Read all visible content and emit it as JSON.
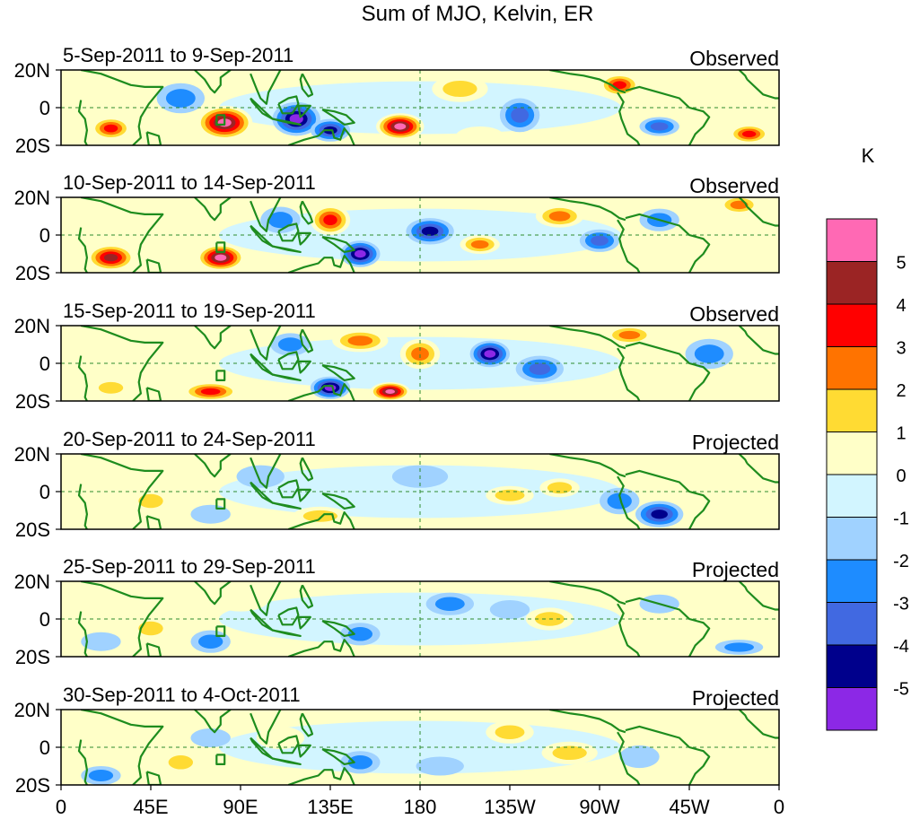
{
  "figure": {
    "title": "Sum of MJO, Kelvin, ER"
  },
  "colors": {
    "land_outline": "#1e8c1e",
    "equator_line": "#2e8b2e",
    "frame": "#000000"
  },
  "chart_data": {
    "type": "heatmap",
    "title": "Sum of MJO, Kelvin, ER",
    "x_tick_labels": [
      "0",
      "45E",
      "90E",
      "135E",
      "180",
      "135W",
      "90W",
      "45W",
      "0"
    ],
    "y_tick_labels": [
      "20N",
      "0",
      "20S"
    ],
    "xlim": [
      0,
      360
    ],
    "ylim": [
      -20,
      20
    ],
    "colorbar": {
      "unit": "K",
      "levels": [
        {
          "label": "5",
          "color": "#9b2424"
        },
        {
          "label": "4",
          "color": "#ff0000"
        },
        {
          "label": "3",
          "color": "#ff7300"
        },
        {
          "label": "2",
          "color": "#ffdb33"
        },
        {
          "label": "1",
          "color": "#ffffc8"
        },
        {
          "label": "0",
          "color": "#d2f5ff"
        },
        {
          "label": "-1",
          "color": "#a0d2ff"
        },
        {
          "label": "-2",
          "color": "#1e8cff"
        },
        {
          "label": "-3",
          "color": "#4169e1"
        },
        {
          "label": "-4",
          "color": "#00008c"
        },
        {
          "label": "-5",
          "color": "#8c28e6"
        }
      ],
      "top_color": "#ff69b4"
    },
    "panels": [
      {
        "period": "5-Sep-2011 to 9-Sep-2011",
        "status": "Observed",
        "anomalies": [
          {
            "lon": 25,
            "lat": -11,
            "rx": 10,
            "ry": 6,
            "value": 4
          },
          {
            "lon": 82,
            "lat": -8,
            "rx": 14,
            "ry": 9,
            "value": 6
          },
          {
            "lon": 118,
            "lat": -6,
            "rx": 12,
            "ry": 9,
            "value": -5
          },
          {
            "lon": 135,
            "lat": -12,
            "rx": 10,
            "ry": 6,
            "value": -4
          },
          {
            "lon": 170,
            "lat": -10,
            "rx": 12,
            "ry": 7,
            "value": 6
          },
          {
            "lon": 200,
            "lat": 10,
            "rx": 14,
            "ry": 7,
            "value": 2
          },
          {
            "lon": 230,
            "lat": -4,
            "rx": 10,
            "ry": 9,
            "value": -3
          },
          {
            "lon": 280,
            "lat": 12,
            "rx": 10,
            "ry": 6,
            "value": 4
          },
          {
            "lon": 300,
            "lat": -10,
            "rx": 10,
            "ry": 5,
            "value": -3
          },
          {
            "lon": 345,
            "lat": -14,
            "rx": 10,
            "ry": 5,
            "value": 4
          },
          {
            "lon": 60,
            "lat": 5,
            "rx": 12,
            "ry": 8,
            "value": -2
          },
          {
            "lon": 210,
            "lat": -15,
            "rx": 12,
            "ry": 5,
            "value": 1
          }
        ]
      },
      {
        "period": "10-Sep-2011 to 14-Sep-2011",
        "status": "Observed",
        "anomalies": [
          {
            "lon": 25,
            "lat": -12,
            "rx": 12,
            "ry": 7,
            "value": 5
          },
          {
            "lon": 80,
            "lat": -12,
            "rx": 12,
            "ry": 7,
            "value": 6
          },
          {
            "lon": 110,
            "lat": 8,
            "rx": 10,
            "ry": 7,
            "value": -2
          },
          {
            "lon": 135,
            "lat": 8,
            "rx": 10,
            "ry": 8,
            "value": 4
          },
          {
            "lon": 150,
            "lat": -10,
            "rx": 10,
            "ry": 7,
            "value": -5
          },
          {
            "lon": 185,
            "lat": 2,
            "rx": 12,
            "ry": 7,
            "value": -4
          },
          {
            "lon": 210,
            "lat": -5,
            "rx": 10,
            "ry": 5,
            "value": 3
          },
          {
            "lon": 250,
            "lat": 10,
            "rx": 12,
            "ry": 6,
            "value": 3
          },
          {
            "lon": 270,
            "lat": -3,
            "rx": 10,
            "ry": 6,
            "value": -3
          },
          {
            "lon": 340,
            "lat": 16,
            "rx": 10,
            "ry": 5,
            "value": 3
          },
          {
            "lon": 300,
            "lat": 8,
            "rx": 10,
            "ry": 6,
            "value": -2
          }
        ]
      },
      {
        "period": "15-Sep-2011 to 19-Sep-2011",
        "status": "Observed",
        "anomalies": [
          {
            "lon": 75,
            "lat": -15,
            "rx": 14,
            "ry": 5,
            "value": 4
          },
          {
            "lon": 135,
            "lat": -13,
            "rx": 10,
            "ry": 6,
            "value": -5
          },
          {
            "lon": 165,
            "lat": -15,
            "rx": 10,
            "ry": 5,
            "value": 6
          },
          {
            "lon": 150,
            "lat": 12,
            "rx": 14,
            "ry": 6,
            "value": 3
          },
          {
            "lon": 180,
            "lat": 5,
            "rx": 10,
            "ry": 8,
            "value": 3
          },
          {
            "lon": 215,
            "lat": 5,
            "rx": 10,
            "ry": 7,
            "value": -5
          },
          {
            "lon": 240,
            "lat": -3,
            "rx": 12,
            "ry": 7,
            "value": -3
          },
          {
            "lon": 285,
            "lat": 15,
            "rx": 12,
            "ry": 5,
            "value": 3
          },
          {
            "lon": 325,
            "lat": 5,
            "rx": 12,
            "ry": 8,
            "value": -2
          },
          {
            "lon": 25,
            "lat": -13,
            "rx": 10,
            "ry": 5,
            "value": 2
          },
          {
            "lon": 115,
            "lat": 10,
            "rx": 10,
            "ry": 6,
            "value": -2
          }
        ]
      },
      {
        "period": "20-Sep-2011 to 24-Sep-2011",
        "status": "Projected",
        "anomalies": [
          {
            "lon": 300,
            "lat": -12,
            "rx": 12,
            "ry": 7,
            "value": -4
          },
          {
            "lon": 280,
            "lat": -5,
            "rx": 10,
            "ry": 7,
            "value": -2
          },
          {
            "lon": 225,
            "lat": -2,
            "rx": 12,
            "ry": 5,
            "value": 2
          },
          {
            "lon": 250,
            "lat": 2,
            "rx": 10,
            "ry": 5,
            "value": 2
          },
          {
            "lon": 45,
            "lat": -5,
            "rx": 10,
            "ry": 6,
            "value": 2
          },
          {
            "lon": 130,
            "lat": -13,
            "rx": 14,
            "ry": 5,
            "value": 2
          },
          {
            "lon": 100,
            "lat": 8,
            "rx": 12,
            "ry": 6,
            "value": -1
          },
          {
            "lon": 180,
            "lat": 8,
            "rx": 14,
            "ry": 6,
            "value": -1
          },
          {
            "lon": 75,
            "lat": -12,
            "rx": 10,
            "ry": 5,
            "value": -1
          }
        ]
      },
      {
        "period": "25-Sep-2011 to 29-Sep-2011",
        "status": "Projected",
        "anomalies": [
          {
            "lon": 75,
            "lat": -12,
            "rx": 10,
            "ry": 6,
            "value": -2
          },
          {
            "lon": 150,
            "lat": -8,
            "rx": 10,
            "ry": 6,
            "value": -2
          },
          {
            "lon": 195,
            "lat": 8,
            "rx": 12,
            "ry": 6,
            "value": -2
          },
          {
            "lon": 225,
            "lat": 5,
            "rx": 10,
            "ry": 5,
            "value": -1
          },
          {
            "lon": 245,
            "lat": 0,
            "rx": 12,
            "ry": 6,
            "value": 2
          },
          {
            "lon": 45,
            "lat": -5,
            "rx": 10,
            "ry": 6,
            "value": 2
          },
          {
            "lon": 90,
            "lat": 10,
            "rx": 14,
            "ry": 6,
            "value": 1
          },
          {
            "lon": 300,
            "lat": 8,
            "rx": 10,
            "ry": 5,
            "value": -1
          },
          {
            "lon": 340,
            "lat": -15,
            "rx": 12,
            "ry": 4,
            "value": -2
          },
          {
            "lon": 20,
            "lat": -12,
            "rx": 10,
            "ry": 5,
            "value": -1
          }
        ]
      },
      {
        "period": "30-Sep-2011 to 4-Oct-2011",
        "status": "Projected",
        "anomalies": [
          {
            "lon": 150,
            "lat": -8,
            "rx": 10,
            "ry": 6,
            "value": -2
          },
          {
            "lon": 20,
            "lat": -15,
            "rx": 10,
            "ry": 5,
            "value": -2
          },
          {
            "lon": 60,
            "lat": -8,
            "rx": 10,
            "ry": 6,
            "value": 2
          },
          {
            "lon": 75,
            "lat": 5,
            "rx": 10,
            "ry": 5,
            "value": -1
          },
          {
            "lon": 225,
            "lat": 8,
            "rx": 12,
            "ry": 6,
            "value": 2
          },
          {
            "lon": 255,
            "lat": -3,
            "rx": 14,
            "ry": 6,
            "value": 2
          },
          {
            "lon": 290,
            "lat": -5,
            "rx": 10,
            "ry": 6,
            "value": -1
          },
          {
            "lon": 110,
            "lat": 5,
            "rx": 12,
            "ry": 6,
            "value": 1
          },
          {
            "lon": 190,
            "lat": -10,
            "rx": 12,
            "ry": 5,
            "value": -1
          }
        ]
      }
    ]
  }
}
